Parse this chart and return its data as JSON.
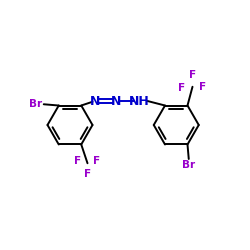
{
  "bg_color": "#ffffff",
  "bond_color": "#000000",
  "n_color": "#0000cc",
  "f_color": "#9900cc",
  "br_color": "#9900cc",
  "figsize": [
    2.5,
    2.5
  ],
  "dpi": 100,
  "xlim": [
    0,
    10
  ],
  "ylim": [
    0,
    10
  ]
}
